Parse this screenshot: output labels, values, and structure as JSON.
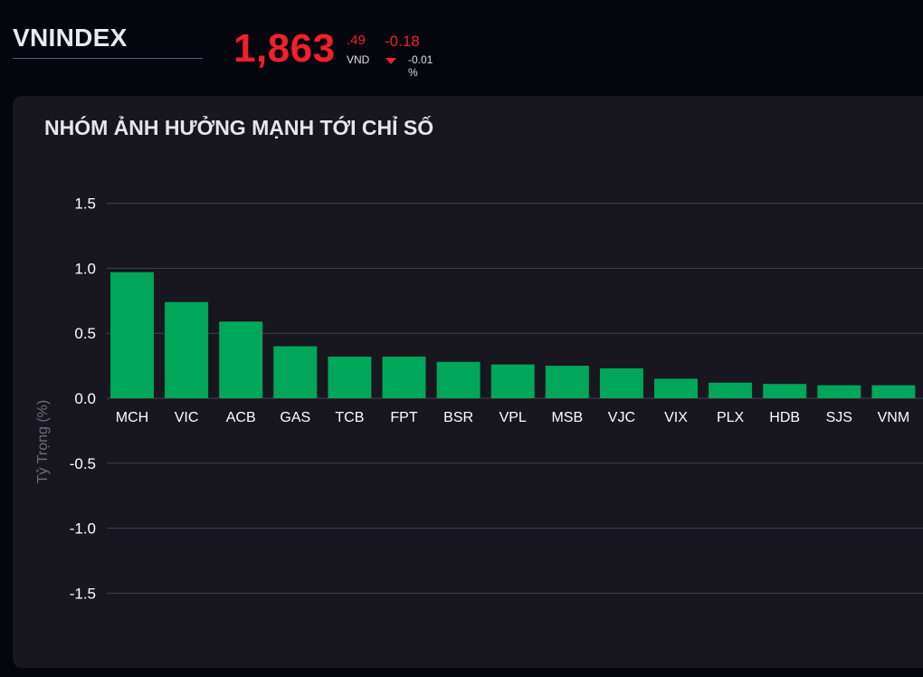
{
  "header": {
    "ticker": "VNINDEX",
    "price_main": "1,863",
    "price_decimal": ".49",
    "currency": "VND",
    "change": "-0.18",
    "change_percent": "-0.01 %",
    "direction_icon": "triangle-down-icon",
    "price_color": "#f0202c"
  },
  "panel": {
    "title": "NHÓM ẢNH HƯỞNG MẠNH TỚI CHỈ SỐ"
  },
  "chart_data": {
    "type": "bar",
    "title": "NHÓM ẢNH HƯỞNG MẠNH TỚI CHỈ SỐ",
    "xlabel": "",
    "ylabel": "Tỷ Trọng (%)",
    "ylim": [
      -1.75,
      1.75
    ],
    "yticks": [
      "1.5",
      "1.0",
      "0.5",
      "0.0",
      "-0.5",
      "-1.0",
      "-1.5"
    ],
    "categories": [
      "MCH",
      "VIC",
      "ACB",
      "GAS",
      "TCB",
      "FPT",
      "BSR",
      "VPL",
      "MSB",
      "VJC",
      "VIX",
      "PLX",
      "HDB",
      "SJS",
      "VNM"
    ],
    "values": [
      0.97,
      0.74,
      0.59,
      0.4,
      0.32,
      0.32,
      0.28,
      0.26,
      0.25,
      0.23,
      0.15,
      0.12,
      0.11,
      0.1,
      0.1
    ],
    "bar_color": "#00a65a",
    "grid": true,
    "legend": "none"
  }
}
